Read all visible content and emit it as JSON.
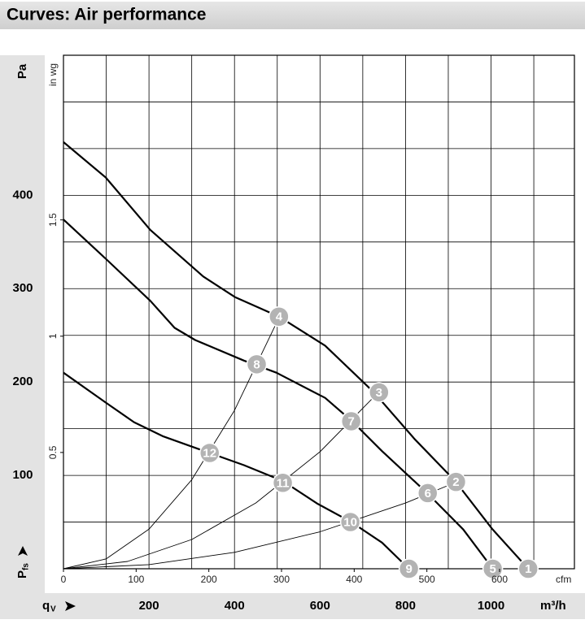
{
  "chart_data": {
    "type": "line",
    "title": "Curves: Air performance",
    "y_label": "Pa",
    "y_symbol": "P",
    "y_symbol_sub": "fs",
    "x_label": "m³/h",
    "x_symbol": "q",
    "x_symbol_sub": "V",
    "x2_label": "cfm",
    "y2_label": "in wg",
    "xlim": [
      0,
      1195
    ],
    "ylim": [
      0,
      550
    ],
    "xticks": [
      200,
      400,
      600,
      800,
      1000
    ],
    "yticks": [
      100,
      200,
      300,
      400
    ],
    "xgrid": [
      100,
      200,
      300,
      400,
      500,
      600,
      700,
      800,
      900,
      1000,
      1100
    ],
    "ygrid": [
      50,
      100,
      150,
      200,
      250,
      300,
      350,
      400,
      450,
      500
    ],
    "x2lim": [
      0,
      703
    ],
    "x2ticks": [
      0,
      100,
      200,
      300,
      400,
      500,
      600
    ],
    "y2lim": [
      0,
      2.208
    ],
    "y2ticks": [
      0.5,
      1,
      1.5
    ],
    "grid": true,
    "series": [
      {
        "color": "#000000",
        "line_width": 2.2,
        "x": [
          0,
          99,
          203,
          327,
          401,
          504,
          612,
          726,
          821,
          916,
          1002,
          1087
        ],
        "values": [
          457,
          419,
          363,
          313,
          291,
          270,
          239,
          189,
          139,
          94,
          43,
          0
        ]
      },
      {
        "color": "#000000",
        "line_width": 2.2,
        "x": [
          0,
          99,
          203,
          260,
          308,
          422,
          498,
          612,
          675,
          745,
          853,
          935,
          1004
        ],
        "values": [
          374,
          332,
          287,
          258,
          245,
          223,
          210,
          183,
          158,
          126,
          80,
          42,
          0
        ]
      },
      {
        "color": "#000000",
        "line_width": 2.2,
        "x": [
          0,
          99,
          165,
          232,
          342,
          422,
          513,
          593,
          673,
          745,
          808
        ],
        "values": [
          210,
          178,
          157,
          142,
          124,
          111,
          94,
          70,
          50,
          28,
          0
        ]
      },
      {
        "color": "#000000",
        "line_width": 0.9,
        "x": [
          0,
          100,
          200,
          300,
          400,
          504
        ],
        "values": [
          0,
          10.6,
          42.4,
          95.4,
          169.6,
          269
        ]
      },
      {
        "color": "#000000",
        "line_width": 0.9,
        "x": [
          0,
          150,
          300,
          450,
          600,
          738
        ],
        "values": [
          0,
          7.8,
          31.3,
          70.5,
          125.3,
          189.5
        ]
      },
      {
        "color": "#000000",
        "line_width": 0.9,
        "x": [
          0,
          200,
          400,
          600,
          800,
          918
        ],
        "values": [
          0,
          4.4,
          17.6,
          39.6,
          70.4,
          92.7
        ]
      }
    ],
    "points_color": "#b3b3b3",
    "points": [
      {
        "label": "1",
        "x": 1087,
        "y": 0
      },
      {
        "label": "2",
        "x": 918,
        "y": 93
      },
      {
        "label": "3",
        "x": 738,
        "y": 189
      },
      {
        "label": "4",
        "x": 504,
        "y": 270
      },
      {
        "label": "5",
        "x": 1004,
        "y": 0
      },
      {
        "label": "6",
        "x": 852,
        "y": 81
      },
      {
        "label": "7",
        "x": 673,
        "y": 158
      },
      {
        "label": "8",
        "x": 452,
        "y": 219
      },
      {
        "label": "9",
        "x": 808,
        "y": 0
      },
      {
        "label": "10",
        "x": 671,
        "y": 50
      },
      {
        "label": "11",
        "x": 513,
        "y": 92
      },
      {
        "label": "12",
        "x": 342,
        "y": 124
      }
    ]
  }
}
